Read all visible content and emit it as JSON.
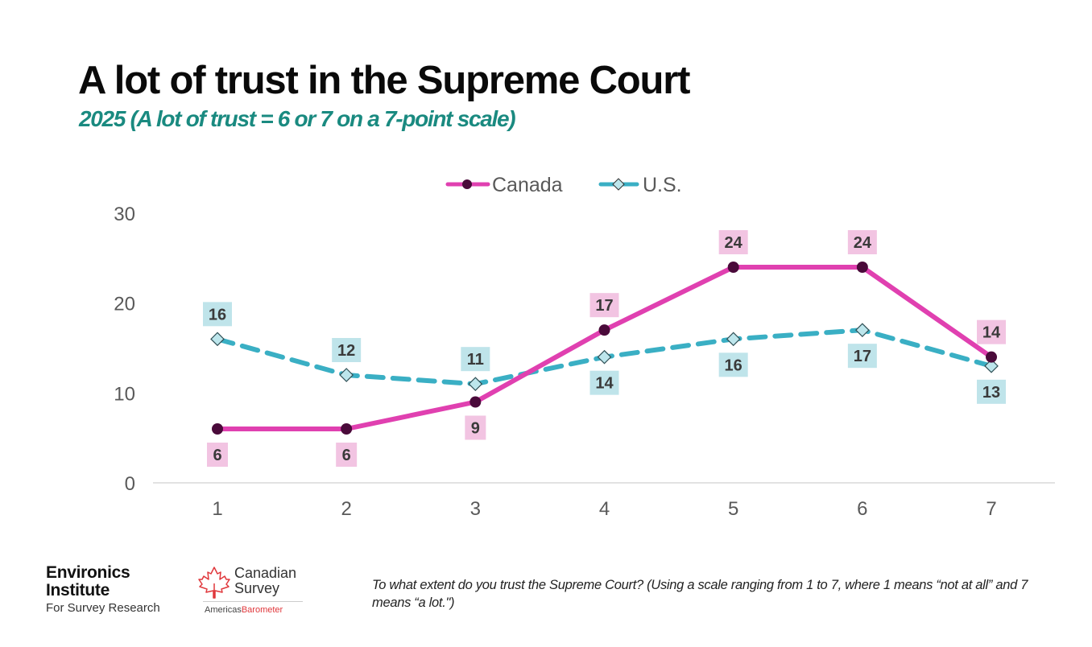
{
  "header": {
    "title": "A lot of trust in the Supreme Court",
    "subtitle": "2025 (A lot of trust  = 6 or 7 on a 7-point scale)"
  },
  "colors": {
    "canada_line": "#e040b0",
    "canada_marker": "#4a0a3a",
    "canada_label_bg": "#f2c4e2",
    "us_line": "#3aafc4",
    "us_marker_fill": "#bde6ec",
    "us_label_bg": "#bfe4ea",
    "subtitle": "#1a8a80",
    "axis": "#d9d9d9",
    "tick_text": "#595959"
  },
  "chart_data": {
    "type": "line",
    "title": "A lot of trust in the Supreme Court",
    "subtitle": "2025 (A lot of trust  = 6 or 7 on a 7-point scale)",
    "xlabel": "",
    "ylabel": "",
    "categories": [
      "1",
      "2",
      "3",
      "4",
      "5",
      "6",
      "7"
    ],
    "ylim": [
      0,
      30
    ],
    "yticks": [
      0,
      10,
      20,
      30
    ],
    "grid": false,
    "legend_position": "top-center",
    "series": [
      {
        "name": "Canada",
        "style": "solid",
        "marker": "circle",
        "values": [
          6,
          6,
          9,
          17,
          24,
          24,
          14
        ],
        "label_positions": [
          "below",
          "below",
          "below",
          "above",
          "above",
          "above",
          "above"
        ]
      },
      {
        "name": "U.S.",
        "style": "dashed",
        "marker": "diamond",
        "values": [
          16,
          12,
          11,
          14,
          16,
          17,
          13
        ],
        "label_positions": [
          "above",
          "above",
          "above",
          "below",
          "below",
          "below",
          "below"
        ]
      }
    ]
  },
  "footer": {
    "logo_environics": {
      "line1": "Environics",
      "line2": "Institute",
      "line3": "For Survey Research"
    },
    "logo_canadian_survey": {
      "line1": "Canadian",
      "line2": "Survey",
      "americas": "Americas",
      "barometer": "Barometer"
    },
    "question_note": "To what extent do you trust the Supreme Court? (Using a scale ranging from 1 to 7, where 1 means “not at all” and 7 means “a lot.\")"
  }
}
